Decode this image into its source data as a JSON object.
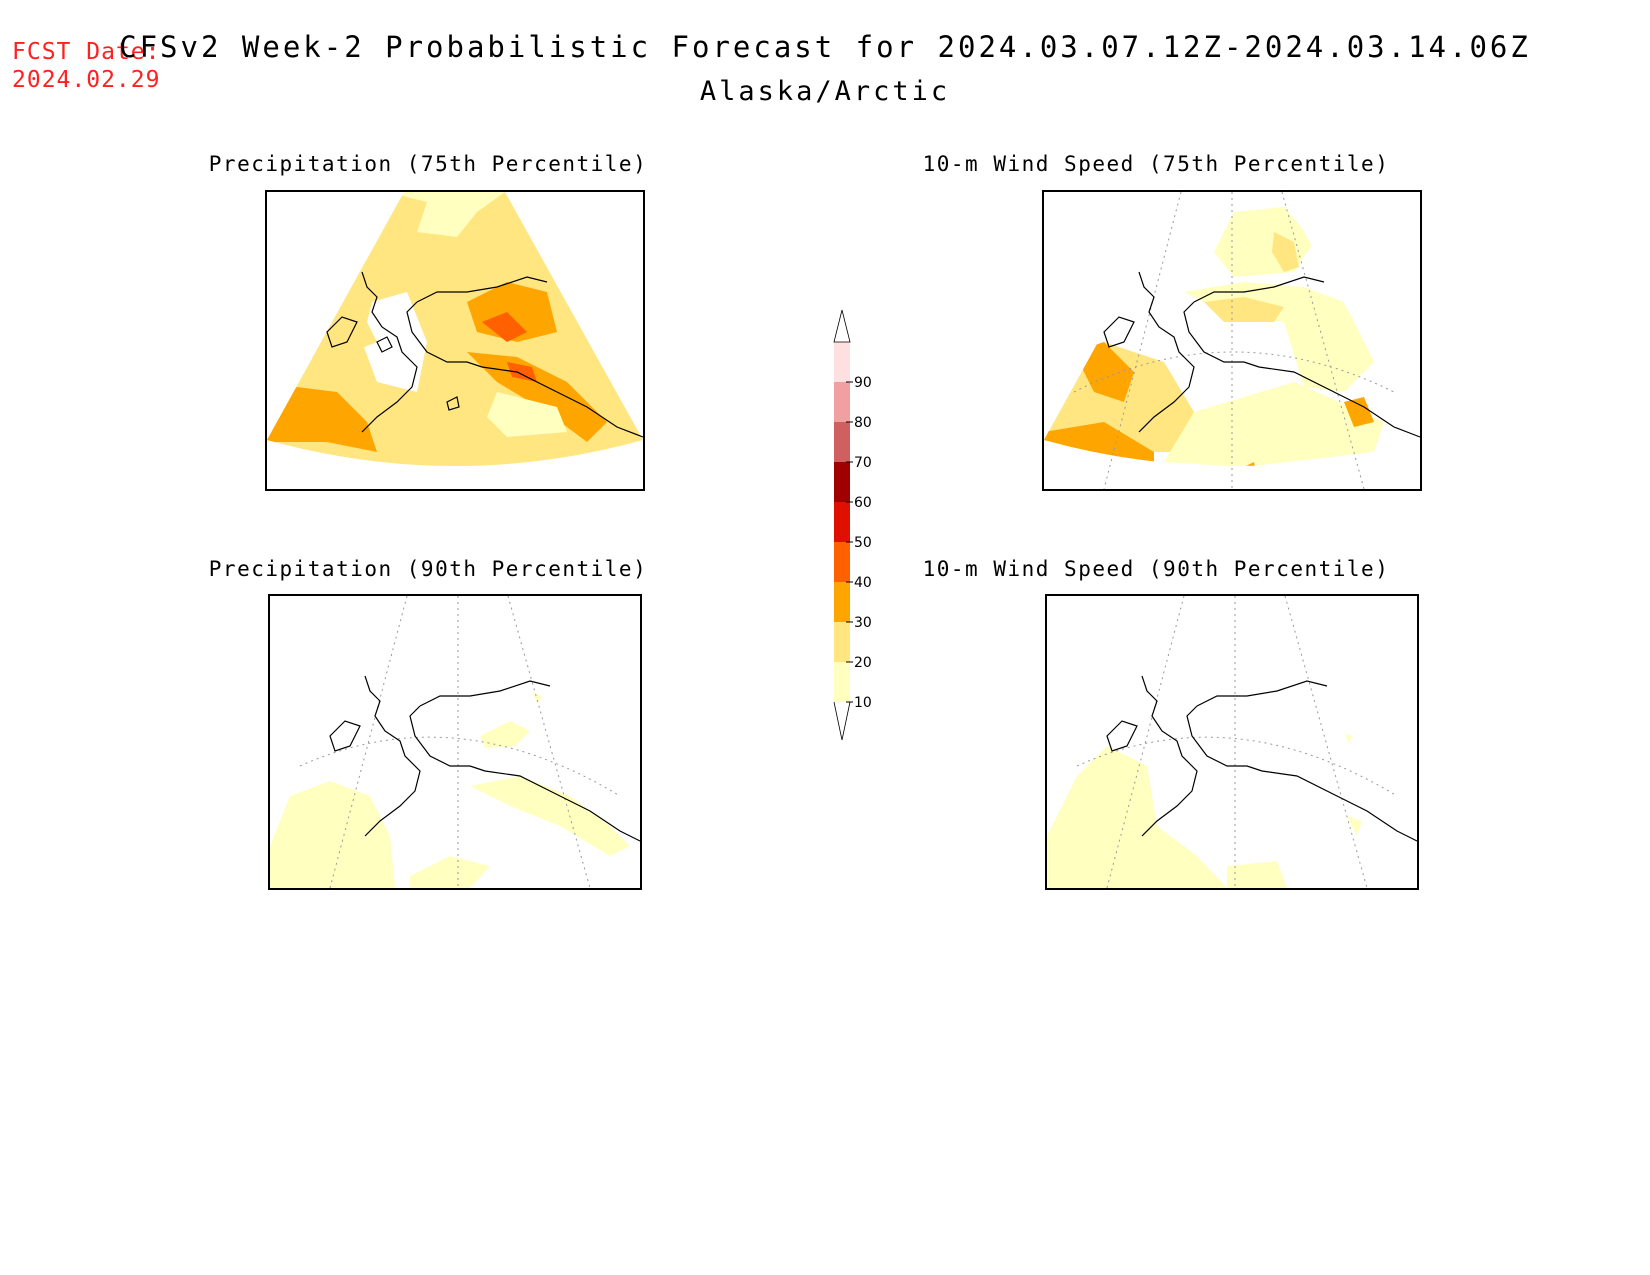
{
  "header": {
    "fcst_label": "FCST Date:",
    "fcst_date": "2024.02.29",
    "title": "CFSv2 Week-2 Probabilistic Forecast for 2024.03.07.12Z-2024.03.14.06Z",
    "subtitle": "Alaska/Arctic"
  },
  "panels": [
    {
      "title": "Precipitation (75th Percentile)"
    },
    {
      "title": "10-m Wind Speed (75th Percentile)"
    },
    {
      "title": "Precipitation (90th Percentile)"
    },
    {
      "title": "10-m Wind Speed (90th Percentile)"
    }
  ],
  "colorbar": {
    "levels": [
      "10",
      "20",
      "30",
      "40",
      "50",
      "60",
      "70",
      "80",
      "90"
    ],
    "colors": [
      "#ffffc0",
      "#ffe680",
      "#ffa500",
      "#ff6000",
      "#e01000",
      "#a00000",
      "#d06060",
      "#f0a0a0",
      "#ffe0e0"
    ]
  },
  "colors": {
    "fcst_date": "#ff2020",
    "coastline": "#000000"
  }
}
